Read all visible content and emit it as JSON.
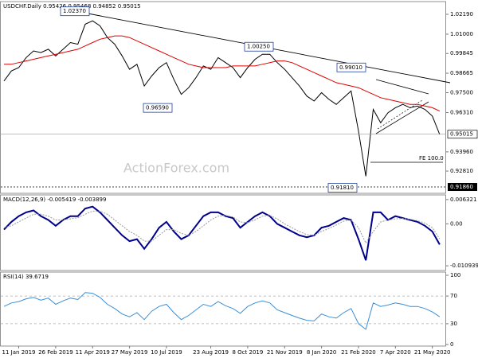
{
  "chart_data": [
    {
      "type": "line",
      "title": "USDCHF.Daily 0.95426 0.95468 0.94852 0.95015",
      "categories": [
        null,
        null,
        "11 Jan 2019",
        null,
        null,
        null,
        null,
        "26 Feb 2019",
        null,
        null,
        null,
        null,
        "11 Apr 2019",
        null,
        null,
        null,
        null,
        "27 May 2019",
        null,
        null,
        null,
        null,
        "10 Jul 2019",
        null,
        null,
        null,
        null,
        null,
        "23 Aug 2019",
        null,
        null,
        null,
        null,
        "8 Oct 2019",
        null,
        null,
        null,
        null,
        "21 Nov 2019",
        null,
        null,
        null,
        null,
        "8 Jan 2020",
        null,
        null,
        null,
        null,
        "21 Feb 2020",
        null,
        null,
        null,
        null,
        "7 Apr 2020",
        null,
        null,
        null,
        null,
        "21 May 2020",
        null
      ],
      "series": [
        {
          "color": "#000000",
          "values": [
            0.982,
            0.988,
            0.99,
            0.996,
            1.0,
            0.999,
            1.001,
            0.997,
            1.001,
            1.005,
            1.004,
            1.016,
            1.018,
            1.015,
            1.008,
            1.004,
            0.997,
            0.989,
            0.992,
            0.979,
            0.985,
            0.99,
            0.993,
            0.983,
            0.974,
            0.978,
            0.984,
            0.991,
            0.989,
            0.996,
            0.993,
            0.99,
            0.984,
            0.99,
            0.995,
            0.998,
            0.998,
            0.993,
            0.989,
            0.984,
            0.979,
            0.973,
            0.97,
            0.975,
            0.971,
            0.968,
            0.972,
            0.976,
            0.952,
            0.925,
            0.965,
            0.957,
            0.963,
            0.966,
            0.968,
            0.966,
            0.967,
            0.965,
            0.961,
            0.95
          ]
        },
        {
          "color": "#e00000",
          "values": [
            0.992,
            0.992,
            0.993,
            0.994,
            0.995,
            0.996,
            0.997,
            0.998,
            0.999,
            1.0,
            1.001,
            1.003,
            1.005,
            1.007,
            1.008,
            1.009,
            1.009,
            1.008,
            1.006,
            1.004,
            1.002,
            1.0,
            0.998,
            0.996,
            0.994,
            0.992,
            0.991,
            0.99,
            0.99,
            0.99,
            0.99,
            0.991,
            0.991,
            0.991,
            0.991,
            0.992,
            0.993,
            0.994,
            0.994,
            0.993,
            0.991,
            0.989,
            0.987,
            0.985,
            0.983,
            0.981,
            0.98,
            0.979,
            0.978,
            0.976,
            0.974,
            0.972,
            0.971,
            0.97,
            0.969,
            0.968,
            0.968,
            0.967,
            0.966,
            0.964
          ]
        }
      ],
      "ylim": [
        0.9148,
        1.0295
      ],
      "yticks": [
        {
          "value": 1.0219,
          "label": "1.02190"
        },
        {
          "value": 1.01,
          "label": "1.01000"
        },
        {
          "value": 0.99845,
          "label": "0.99845"
        },
        {
          "value": 0.98665,
          "label": "0.98665"
        },
        {
          "value": 0.975,
          "label": "0.97500"
        },
        {
          "value": 0.9631,
          "label": "0.96310"
        },
        {
          "value": 0.9396,
          "label": "0.93960"
        },
        {
          "value": 0.9281,
          "label": "0.92810"
        }
      ],
      "last_price": 0.95015,
      "support": {
        "value": 0.9186,
        "label": "0.91860"
      },
      "annotations": [
        {
          "value": 1.0237,
          "label": "1.02370"
        },
        {
          "value": 1.0025,
          "label": "1.00250"
        },
        {
          "value": 0.9901,
          "label": "0.99010"
        },
        {
          "value": 0.9659,
          "label": "0.96590"
        },
        {
          "value": 0.9181,
          "label": "0.91810"
        }
      ],
      "fe_label": "FE 100.0",
      "watermark": "ActionForex.com"
    },
    {
      "type": "line",
      "title": "MACD(12,26,9) -0.005419 -0.003899",
      "series": [
        {
          "color": "#00008b",
          "values": [
            -0.0015,
            0.0005,
            0.002,
            0.003,
            0.0035,
            0.002,
            0.001,
            -0.0005,
            0.001,
            0.002,
            0.002,
            0.004,
            0.0045,
            0.003,
            0.001,
            -0.001,
            -0.003,
            -0.0045,
            -0.004,
            -0.0065,
            -0.004,
            -0.001,
            0.0005,
            -0.002,
            -0.004,
            -0.003,
            -0.0005,
            0.002,
            0.003,
            0.003,
            0.002,
            0.0015,
            -0.001,
            0.0005,
            0.002,
            0.003,
            0.002,
            0.0,
            -0.001,
            -0.002,
            -0.003,
            -0.0035,
            -0.003,
            -0.001,
            -0.0005,
            0.0005,
            0.0015,
            0.001,
            -0.004,
            -0.0095,
            0.003,
            0.003,
            0.001,
            0.002,
            0.0015,
            0.001,
            0.0005,
            -0.0005,
            -0.002,
            -0.0054
          ]
        },
        {
          "color": "#999999",
          "values": [
            -0.001,
            -0.0005,
            0.0005,
            0.0015,
            0.0025,
            0.0025,
            0.002,
            0.001,
            0.001,
            0.0013,
            0.0016,
            0.0025,
            0.0033,
            0.0033,
            0.0025,
            0.001,
            -0.0005,
            -0.002,
            -0.003,
            -0.0045,
            -0.0045,
            -0.003,
            -0.0015,
            -0.0015,
            -0.0025,
            -0.003,
            -0.002,
            -0.0005,
            0.001,
            0.002,
            0.0022,
            0.0018,
            0.0005,
            0.0003,
            0.001,
            0.002,
            0.0022,
            0.0013,
            0.0,
            -0.001,
            -0.002,
            -0.0028,
            -0.003,
            -0.002,
            -0.0012,
            -0.0003,
            0.0007,
            0.001,
            -0.001,
            -0.005,
            -0.002,
            0.0005,
            0.001,
            0.0013,
            0.0014,
            0.0012,
            0.0008,
            0.0002,
            -0.001,
            -0.0039
          ]
        }
      ],
      "ylim": [
        -0.01216,
        0.00754
      ],
      "yticks": [
        0.006321,
        {
          "value": 0,
          "label": "0.00"
        },
        -0.010939
      ]
    },
    {
      "type": "line",
      "title": "RSI(14) 39.6719",
      "series": [
        {
          "color": "#3a8fd9",
          "values": [
            55,
            60,
            62,
            66,
            68,
            64,
            67,
            58,
            63,
            67,
            65,
            75,
            74,
            68,
            58,
            52,
            44,
            40,
            46,
            36,
            48,
            55,
            58,
            46,
            36,
            42,
            50,
            58,
            55,
            62,
            56,
            52,
            45,
            55,
            60,
            63,
            60,
            50,
            46,
            42,
            38,
            35,
            34,
            44,
            40,
            38,
            46,
            52,
            30,
            22,
            60,
            55,
            57,
            60,
            58,
            55,
            55,
            52,
            47,
            40
          ]
        }
      ],
      "ylim": [
        -2.3,
        104.6
      ],
      "yticks": [
        100,
        70,
        30,
        0
      ],
      "levels": [
        70,
        30
      ]
    }
  ]
}
